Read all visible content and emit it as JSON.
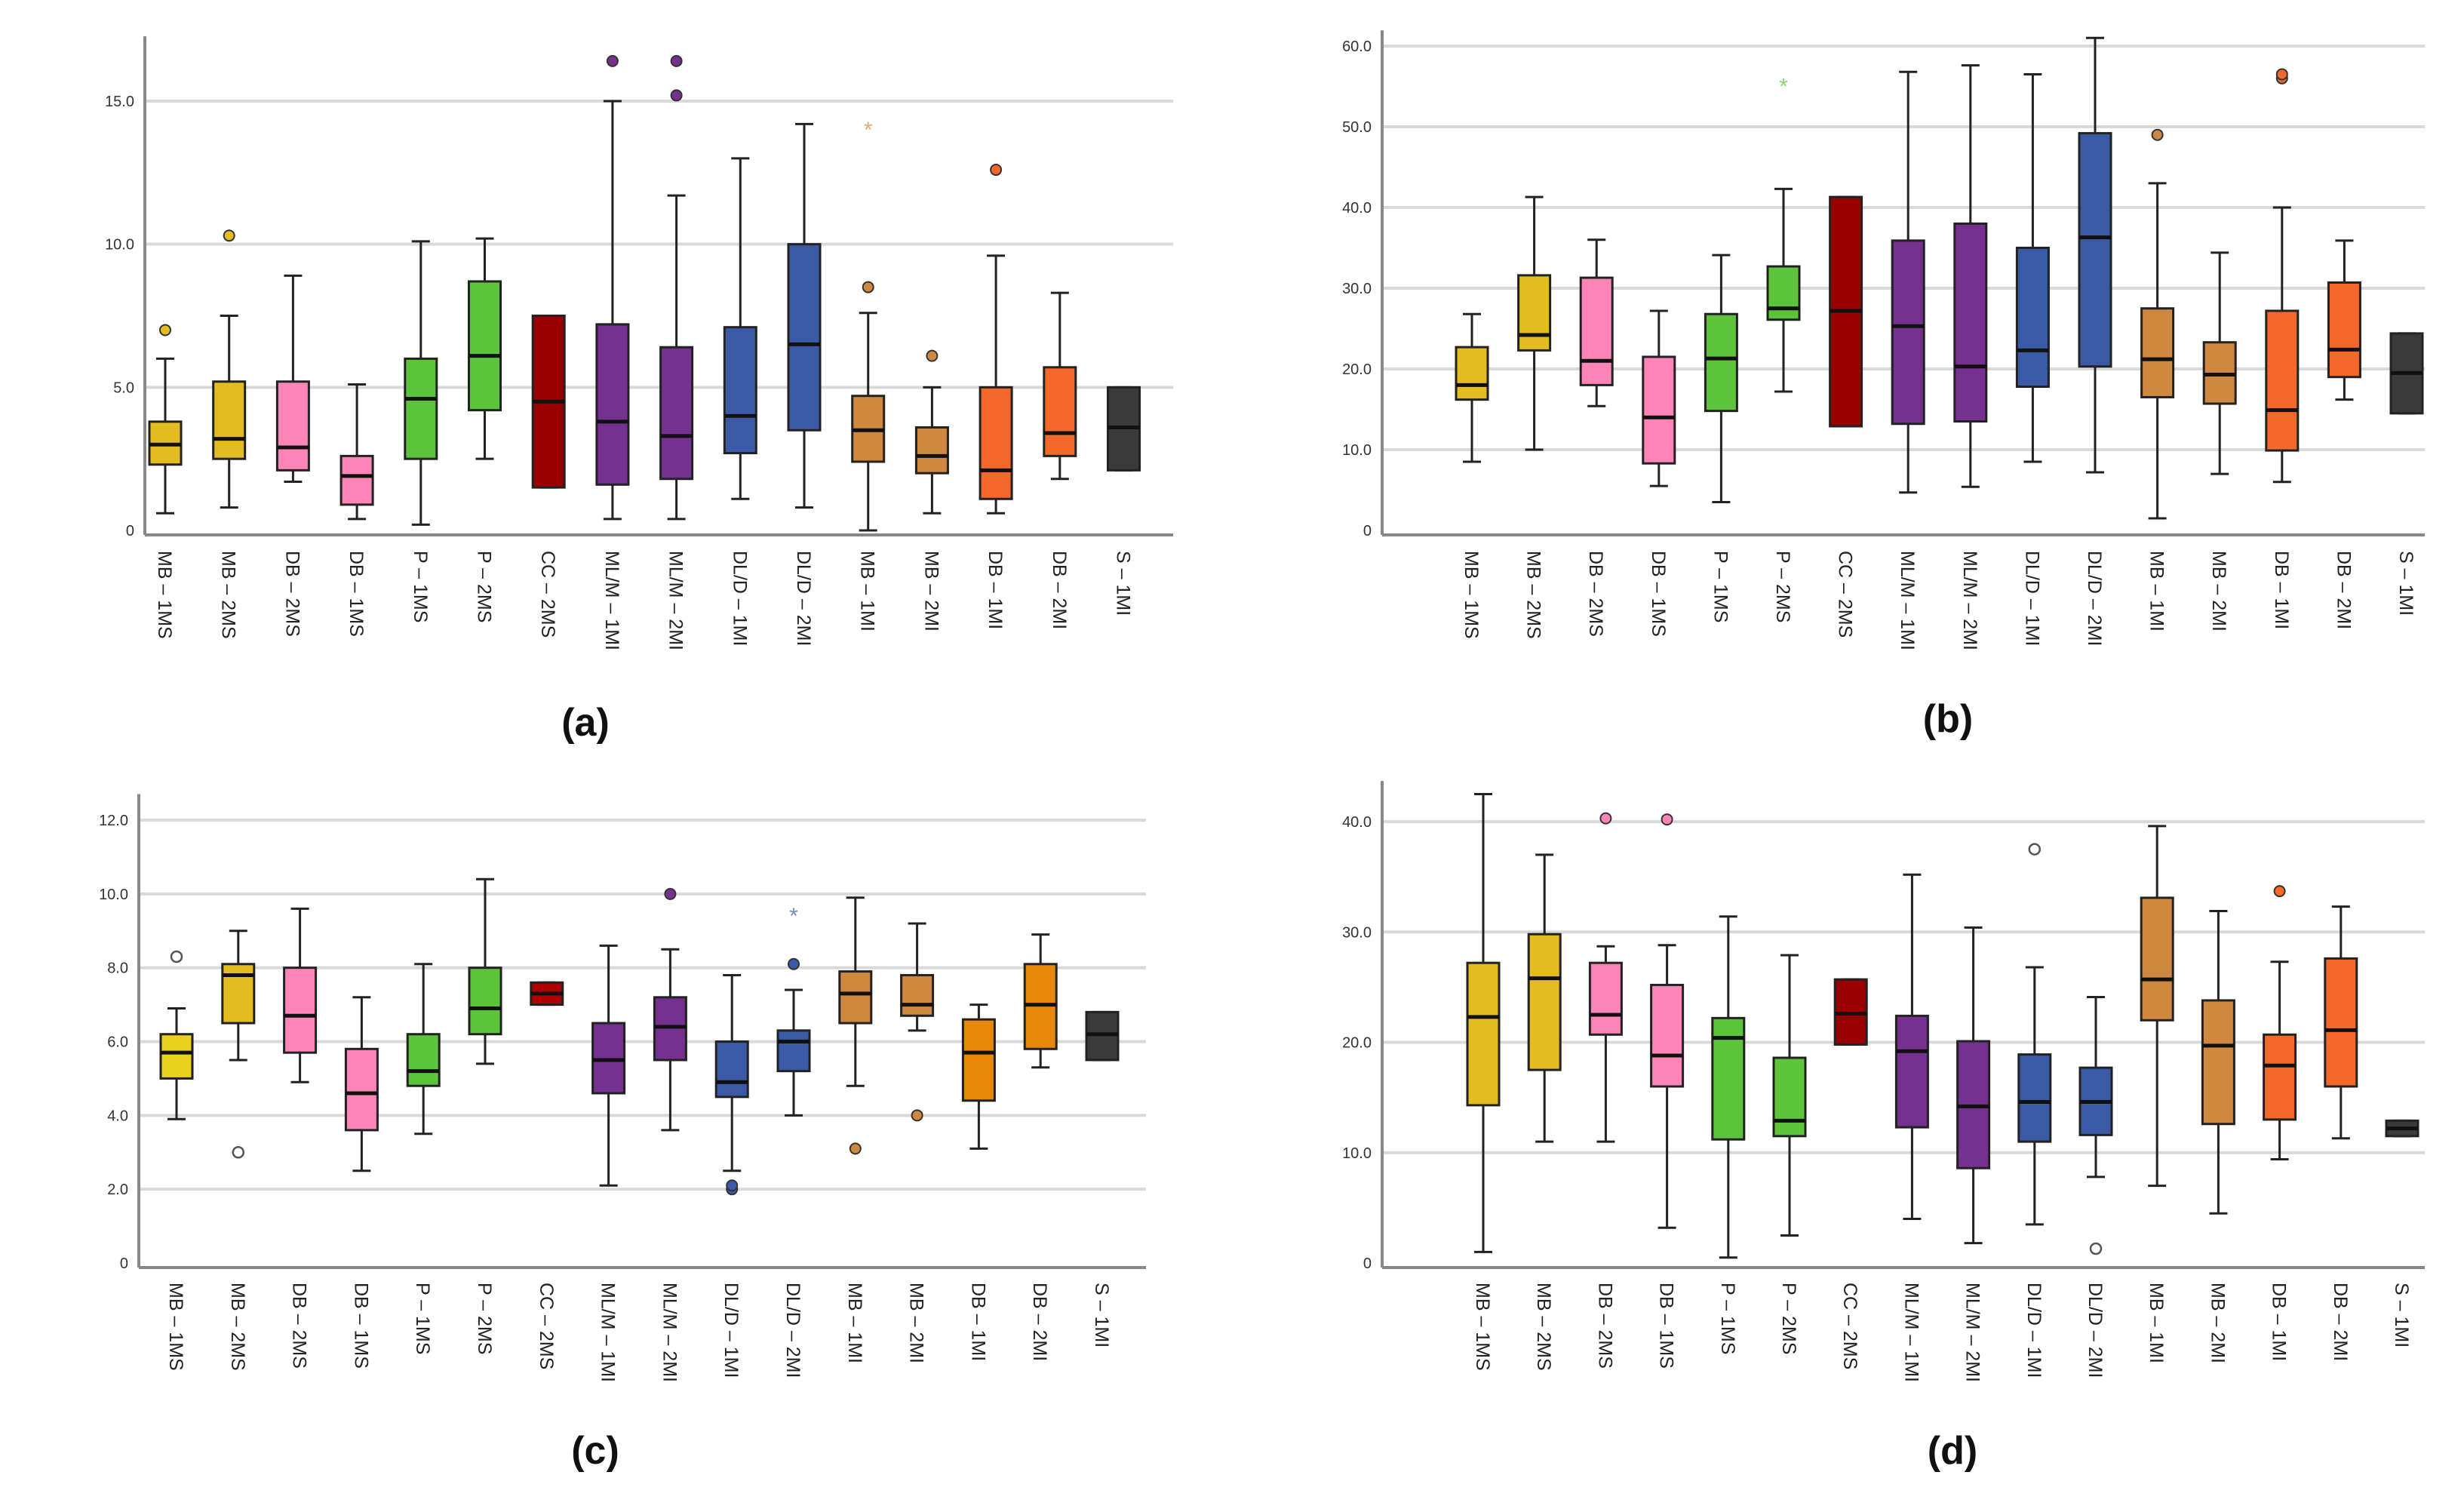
{
  "chart_data": [
    {
      "type": "box",
      "title": "(a)",
      "ylim": [
        0,
        17
      ],
      "yticks": [
        0,
        5,
        10,
        15
      ],
      "ytick_labels": [
        "0",
        "5.0",
        "10.0",
        "15.0"
      ],
      "grid": true,
      "categories": [
        "MB – 1MS",
        "MB – 2MS",
        "DB – 2MS",
        "DB – 1MS",
        "P – 1MS",
        "P – 2MS",
        "CC – 2MS",
        "ML/M – 1MI",
        "ML/M – 2MI",
        "DL/D – 1MI",
        "DL/D – 2MI",
        "MB – 1MI",
        "MB – 2MI",
        "DB – 1MI",
        "DB – 2MI",
        "S – 1MI"
      ],
      "colors": [
        "#e3bd1f",
        "#e3bd1f",
        "#ff85b8",
        "#ff85b8",
        "#5cc43a",
        "#5cc43a",
        "#990000",
        "#76308f",
        "#76308f",
        "#3a5aa8",
        "#3a5aa8",
        "#d08840",
        "#d08840",
        "#f4692a",
        "#f4692a",
        "#3a3a3a"
      ],
      "boxes": [
        {
          "min": 0.6,
          "q1": 2.3,
          "median": 3.0,
          "q3": 3.8,
          "max": 6.0,
          "outliers": [
            {
              "v": 7.0,
              "type": "dot"
            }
          ]
        },
        {
          "min": 0.8,
          "q1": 2.5,
          "median": 3.2,
          "q3": 5.2,
          "max": 7.5,
          "outliers": [
            {
              "v": 10.3,
              "type": "dot"
            }
          ]
        },
        {
          "min": 1.7,
          "q1": 2.1,
          "median": 2.9,
          "q3": 5.2,
          "max": 8.9,
          "outliers": []
        },
        {
          "min": 0.4,
          "q1": 0.9,
          "median": 1.9,
          "q3": 2.6,
          "max": 5.1,
          "outliers": []
        },
        {
          "min": 0.2,
          "q1": 2.5,
          "median": 4.6,
          "q3": 6.0,
          "max": 10.1,
          "outliers": []
        },
        {
          "min": 2.5,
          "q1": 4.2,
          "median": 6.1,
          "q3": 8.7,
          "max": 10.2,
          "outliers": []
        },
        {
          "min": 1.5,
          "q1": 1.5,
          "median": 4.5,
          "q3": 7.5,
          "max": 7.5,
          "outliers": []
        },
        {
          "min": 0.4,
          "q1": 1.6,
          "median": 3.8,
          "q3": 7.2,
          "max": 15.0,
          "outliers": [
            {
              "v": 16.4,
              "type": "dot"
            }
          ]
        },
        {
          "min": 0.4,
          "q1": 1.8,
          "median": 3.3,
          "q3": 6.4,
          "max": 11.7,
          "outliers": [
            {
              "v": 15.2,
              "type": "dot"
            },
            {
              "v": 16.4,
              "type": "dot"
            }
          ]
        },
        {
          "min": 1.1,
          "q1": 2.7,
          "median": 4.0,
          "q3": 7.1,
          "max": 13.0,
          "outliers": []
        },
        {
          "min": 0.8,
          "q1": 3.5,
          "median": 6.5,
          "q3": 10.0,
          "max": 14.2,
          "outliers": []
        },
        {
          "min": 0.0,
          "q1": 2.4,
          "median": 3.5,
          "q3": 4.7,
          "max": 7.6,
          "outliers": [
            {
              "v": 8.5,
              "type": "dot"
            },
            {
              "v": 14.0,
              "type": "star"
            }
          ]
        },
        {
          "min": 0.6,
          "q1": 2.0,
          "median": 2.6,
          "q3": 3.6,
          "max": 5.0,
          "outliers": [
            {
              "v": 6.1,
              "type": "dot"
            }
          ]
        },
        {
          "min": 0.6,
          "q1": 1.1,
          "median": 2.1,
          "q3": 5.0,
          "max": 9.6,
          "outliers": [
            {
              "v": 12.6,
              "type": "dot"
            }
          ]
        },
        {
          "min": 1.8,
          "q1": 2.6,
          "median": 3.4,
          "q3": 5.7,
          "max": 8.3,
          "outliers": []
        },
        {
          "min": 2.1,
          "q1": 2.1,
          "median": 3.6,
          "q3": 5.0,
          "max": 5.0,
          "outliers": []
        }
      ]
    },
    {
      "type": "box",
      "title": "(b)",
      "ylim": [
        0,
        61
      ],
      "yticks": [
        0,
        10,
        20,
        30,
        40,
        50,
        60
      ],
      "ytick_labels": [
        "0",
        "10.0",
        "20.0",
        "30.0",
        "40.0",
        "50.0",
        "60.0"
      ],
      "grid": true,
      "categories": [
        "MB – 1MS",
        "MB – 2MS",
        "DB – 2MS",
        "DB – 1MS",
        "P – 1MS",
        "P – 2MS",
        "CC – 2MS",
        "ML/M – 1MI",
        "ML/M – 2MI",
        "DL/D – 1MI",
        "DL/D – 2MI",
        "MB – 1MI",
        "MB – 2MI",
        "DB – 1MI",
        "DB – 2MI",
        "S – 1MI"
      ],
      "colors": [
        "#e3bd1f",
        "#e3bd1f",
        "#ff85b8",
        "#ff85b8",
        "#5cc43a",
        "#5cc43a",
        "#990000",
        "#76308f",
        "#76308f",
        "#3a5aa8",
        "#3a5aa8",
        "#d08840",
        "#d08840",
        "#f4692a",
        "#f4692a",
        "#3a3a3a"
      ],
      "boxes": [
        {
          "min": 8.5,
          "q1": 16.2,
          "median": 18.0,
          "q3": 22.7,
          "max": 26.8,
          "outliers": []
        },
        {
          "min": 10.0,
          "q1": 22.3,
          "median": 24.2,
          "q3": 31.6,
          "max": 41.3,
          "outliers": []
        },
        {
          "min": 15.4,
          "q1": 18.0,
          "median": 21.0,
          "q3": 31.3,
          "max": 36.0,
          "outliers": []
        },
        {
          "min": 5.5,
          "q1": 8.3,
          "median": 14.0,
          "q3": 21.5,
          "max": 27.2,
          "outliers": []
        },
        {
          "min": 3.5,
          "q1": 14.8,
          "median": 21.3,
          "q3": 26.8,
          "max": 34.1,
          "outliers": []
        },
        {
          "min": 17.2,
          "q1": 26.1,
          "median": 27.5,
          "q3": 32.7,
          "max": 42.3,
          "outliers": [
            {
              "v": 55.0,
              "type": "star"
            }
          ]
        },
        {
          "min": 12.9,
          "q1": 12.9,
          "median": 27.2,
          "q3": 41.3,
          "max": 41.3,
          "outliers": []
        },
        {
          "min": 4.7,
          "q1": 13.2,
          "median": 25.3,
          "q3": 35.9,
          "max": 56.8,
          "outliers": []
        },
        {
          "min": 5.4,
          "q1": 13.5,
          "median": 20.3,
          "q3": 38.0,
          "max": 57.6,
          "outliers": []
        },
        {
          "min": 8.5,
          "q1": 17.8,
          "median": 22.3,
          "q3": 35.0,
          "max": 56.5,
          "outliers": []
        },
        {
          "min": 7.2,
          "q1": 20.3,
          "median": 36.3,
          "q3": 49.2,
          "max": 61.0,
          "outliers": []
        },
        {
          "min": 1.5,
          "q1": 16.5,
          "median": 21.2,
          "q3": 27.5,
          "max": 43.0,
          "outliers": [
            {
              "v": 49.0,
              "type": "dot"
            }
          ]
        },
        {
          "min": 7.0,
          "q1": 15.7,
          "median": 19.3,
          "q3": 23.3,
          "max": 34.4,
          "outliers": []
        },
        {
          "min": 6.0,
          "q1": 9.9,
          "median": 14.9,
          "q3": 27.2,
          "max": 40.0,
          "outliers": [
            {
              "v": 56.0,
              "type": "dot"
            },
            {
              "v": 56.5,
              "type": "dot"
            }
          ]
        },
        {
          "min": 16.2,
          "q1": 19.0,
          "median": 22.4,
          "q3": 30.7,
          "max": 35.9,
          "outliers": []
        },
        {
          "min": 14.5,
          "q1": 14.5,
          "median": 19.5,
          "q3": 24.4,
          "max": 24.4,
          "outliers": []
        }
      ]
    },
    {
      "type": "box",
      "title": "(c)",
      "ylim": [
        0,
        12.5
      ],
      "yticks": [
        0,
        2,
        4,
        6,
        8,
        10,
        12
      ],
      "ytick_labels": [
        "0",
        "2.0",
        "4.0",
        "6.0",
        "8.0",
        "10.0",
        "12.0"
      ],
      "grid": true,
      "categories": [
        "MB – 1MS",
        "MB – 2MS",
        "DB – 2MS",
        "DB – 1MS",
        "P – 1MS",
        "P – 2MS",
        "CC – 2MS",
        "ML/M – 1MI",
        "ML/M – 2MI",
        "DL/D – 1MI",
        "DL/D – 2MI",
        "MB – 1MI",
        "MB – 2MI",
        "DB – 1MI",
        "DB – 2MI",
        "S – 1MI"
      ],
      "colors": [
        "#e8d21e",
        "#e3bd1f",
        "#ff85b8",
        "#ff85b8",
        "#5cc43a",
        "#5cc43a",
        "#b00000",
        "#76308f",
        "#76308f",
        "#3a5aa8",
        "#3a5aa8",
        "#d08840",
        "#d08840",
        "#e8880a",
        "#e8880a",
        "#3a3a3a"
      ],
      "boxes": [
        {
          "min": 3.9,
          "q1": 5.0,
          "median": 5.7,
          "q3": 6.2,
          "max": 6.9,
          "outliers": [
            {
              "v": 8.3,
              "type": "open"
            }
          ]
        },
        {
          "min": 5.5,
          "q1": 6.5,
          "median": 7.8,
          "q3": 8.1,
          "max": 9.0,
          "outliers": [
            {
              "v": 3.0,
              "type": "open"
            }
          ]
        },
        {
          "min": 4.9,
          "q1": 5.7,
          "median": 6.7,
          "q3": 8.0,
          "max": 9.6,
          "outliers": []
        },
        {
          "min": 2.5,
          "q1": 3.6,
          "median": 4.6,
          "q3": 5.8,
          "max": 7.2,
          "outliers": []
        },
        {
          "min": 3.5,
          "q1": 4.8,
          "median": 5.2,
          "q3": 6.2,
          "max": 8.1,
          "outliers": []
        },
        {
          "min": 5.4,
          "q1": 6.2,
          "median": 6.9,
          "q3": 8.0,
          "max": 10.4,
          "outliers": []
        },
        {
          "min": 7.0,
          "q1": 7.0,
          "median": 7.3,
          "q3": 7.6,
          "max": 7.6,
          "outliers": []
        },
        {
          "min": 2.1,
          "q1": 4.6,
          "median": 5.5,
          "q3": 6.5,
          "max": 8.6,
          "outliers": []
        },
        {
          "min": 3.6,
          "q1": 5.5,
          "median": 6.4,
          "q3": 7.2,
          "max": 8.5,
          "outliers": [
            {
              "v": 10.0,
              "type": "dot"
            }
          ]
        },
        {
          "min": 2.5,
          "q1": 4.5,
          "median": 4.9,
          "q3": 6.0,
          "max": 7.8,
          "outliers": [
            {
              "v": 2.0,
              "type": "dot"
            },
            {
              "v": 2.1,
              "type": "dot"
            }
          ]
        },
        {
          "min": 4.0,
          "q1": 5.2,
          "median": 6.0,
          "q3": 6.3,
          "max": 7.4,
          "outliers": [
            {
              "v": 8.1,
              "type": "dot"
            },
            {
              "v": 9.4,
              "type": "star"
            }
          ]
        },
        {
          "min": 4.8,
          "q1": 6.5,
          "median": 7.3,
          "q3": 7.9,
          "max": 9.9,
          "outliers": [
            {
              "v": 3.1,
              "type": "dot"
            }
          ]
        },
        {
          "min": 6.3,
          "q1": 6.7,
          "median": 7.0,
          "q3": 7.8,
          "max": 9.2,
          "outliers": [
            {
              "v": 4.0,
              "type": "dot"
            }
          ]
        },
        {
          "min": 3.1,
          "q1": 4.4,
          "median": 5.7,
          "q3": 6.6,
          "max": 7.0,
          "outliers": []
        },
        {
          "min": 5.3,
          "q1": 5.8,
          "median": 7.0,
          "q3": 8.1,
          "max": 8.9,
          "outliers": []
        },
        {
          "min": 5.5,
          "q1": 5.5,
          "median": 6.2,
          "q3": 6.8,
          "max": 6.8,
          "outliers": []
        }
      ]
    },
    {
      "type": "box",
      "title": "(d)",
      "ylim": [
        0,
        43
      ],
      "yticks": [
        0,
        10,
        20,
        30,
        40
      ],
      "ytick_labels": [
        "0",
        "10.0",
        "20.0",
        "30.0",
        "40.0"
      ],
      "grid": true,
      "categories": [
        "MB – 1MS",
        "MB – 2MS",
        "DB – 2MS",
        "DB – 1MS",
        "P – 1MS",
        "P – 2MS",
        "CC – 2MS",
        "ML/M – 1MI",
        "ML/M – 2MI",
        "DL/D – 1MI",
        "DL/D – 2MI",
        "MB – 1MI",
        "MB – 2MI",
        "DB – 1MI",
        "DB – 2MI",
        "S – 1MI"
      ],
      "colors": [
        "#e3bd1f",
        "#e3bd1f",
        "#ff85b8",
        "#ff85b8",
        "#5cc43a",
        "#5cc43a",
        "#990000",
        "#76308f",
        "#76308f",
        "#3a5aa8",
        "#3a5aa8",
        "#d08840",
        "#d08840",
        "#f4692a",
        "#f4692a",
        "#3a3a3a"
      ],
      "boxes": [
        {
          "min": 1.0,
          "q1": 14.3,
          "median": 22.3,
          "q3": 27.2,
          "max": 42.5,
          "outliers": []
        },
        {
          "min": 11.0,
          "q1": 17.5,
          "median": 25.8,
          "q3": 29.8,
          "max": 37.0,
          "outliers": []
        },
        {
          "min": 11.0,
          "q1": 20.7,
          "median": 22.5,
          "q3": 27.2,
          "max": 28.7,
          "outliers": [
            {
              "v": 40.3,
              "type": "dot"
            }
          ]
        },
        {
          "min": 3.2,
          "q1": 16.0,
          "median": 18.8,
          "q3": 25.2,
          "max": 28.8,
          "outliers": [
            {
              "v": 40.2,
              "type": "dot"
            }
          ]
        },
        {
          "min": 0.5,
          "q1": 11.2,
          "median": 20.4,
          "q3": 22.2,
          "max": 31.4,
          "outliers": []
        },
        {
          "min": 2.5,
          "q1": 11.5,
          "median": 12.9,
          "q3": 18.6,
          "max": 27.9,
          "outliers": []
        },
        {
          "min": 19.8,
          "q1": 19.8,
          "median": 22.6,
          "q3": 25.7,
          "max": 25.7,
          "outliers": []
        },
        {
          "min": 4.0,
          "q1": 12.3,
          "median": 19.2,
          "q3": 22.4,
          "max": 35.2,
          "outliers": []
        },
        {
          "min": 1.8,
          "q1": 8.6,
          "median": 14.2,
          "q3": 20.1,
          "max": 30.4,
          "outliers": []
        },
        {
          "min": 3.5,
          "q1": 11.0,
          "median": 14.6,
          "q3": 18.9,
          "max": 26.8,
          "outliers": [
            {
              "v": 37.5,
              "type": "open"
            }
          ]
        },
        {
          "min": 7.8,
          "q1": 11.6,
          "median": 14.6,
          "q3": 17.7,
          "max": 24.1,
          "outliers": [
            {
              "v": 1.3,
              "type": "open"
            }
          ]
        },
        {
          "min": 7.0,
          "q1": 22.0,
          "median": 25.7,
          "q3": 33.1,
          "max": 39.6,
          "outliers": []
        },
        {
          "min": 4.5,
          "q1": 12.6,
          "median": 19.7,
          "q3": 23.8,
          "max": 31.9,
          "outliers": []
        },
        {
          "min": 9.4,
          "q1": 13.0,
          "median": 17.9,
          "q3": 20.7,
          "max": 27.3,
          "outliers": [
            {
              "v": 33.7,
              "type": "dot"
            }
          ]
        },
        {
          "min": 11.3,
          "q1": 16.0,
          "median": 21.1,
          "q3": 27.6,
          "max": 32.3,
          "outliers": []
        },
        {
          "min": 11.5,
          "q1": 11.5,
          "median": 12.2,
          "q3": 12.9,
          "max": 12.9,
          "outliers": []
        }
      ]
    }
  ]
}
